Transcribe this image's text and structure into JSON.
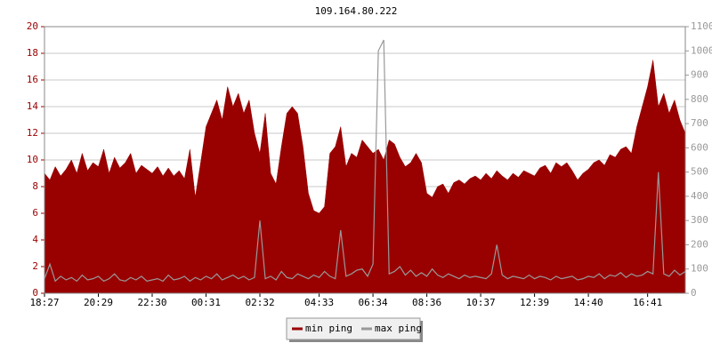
{
  "chart_data": {
    "type": "area_line",
    "title": "109.164.80.222",
    "xlim": [
      0,
      119
    ],
    "xticks": [
      {
        "value": 0,
        "label": "18:27"
      },
      {
        "value": 10,
        "label": "20:29"
      },
      {
        "value": 20,
        "label": "22:30"
      },
      {
        "value": 30,
        "label": "00:31"
      },
      {
        "value": 40,
        "label": "02:32"
      },
      {
        "value": 51,
        "label": "04:33"
      },
      {
        "value": 61,
        "label": "06:34"
      },
      {
        "value": 71,
        "label": "08:36"
      },
      {
        "value": 81,
        "label": "10:37"
      },
      {
        "value": 91,
        "label": "12:39"
      },
      {
        "value": 101,
        "label": "14:40"
      },
      {
        "value": 112,
        "label": "16:41"
      }
    ],
    "ylim": [
      0,
      20
    ],
    "yticks": [
      0,
      2,
      4,
      6,
      8,
      10,
      12,
      14,
      16,
      18,
      20
    ],
    "y2lim": [
      0,
      1100
    ],
    "y2ticks": [
      0,
      100,
      200,
      300,
      400,
      500,
      600,
      700,
      800,
      900,
      1000,
      1100
    ],
    "grid": true,
    "legend": "bottom",
    "series": [
      {
        "name": "min ping",
        "color": "#990000",
        "fill": true,
        "values": [
          9,
          8.5,
          9.5,
          8.8,
          9.3,
          10,
          9,
          10.5,
          9.2,
          9.8,
          9.5,
          10.8,
          9,
          10.2,
          9.4,
          9.8,
          10.5,
          9,
          9.6,
          9.3,
          9,
          9.5,
          8.8,
          9.4,
          8.8,
          9.2,
          8.6,
          10.8,
          7.2,
          9.8,
          12.5,
          13.5,
          14.5,
          13,
          15.5,
          14,
          15,
          13.5,
          14.5,
          12,
          10.5,
          13.5,
          9,
          8.2,
          11,
          13.5,
          14,
          13.5,
          11,
          7.5,
          6.2,
          6,
          6.5,
          10.5,
          11,
          12.5,
          9.5,
          10.5,
          10.2,
          11.5,
          11,
          10.5,
          10.8,
          10,
          11.5,
          11.2,
          10.2,
          9.5,
          9.8,
          10.5,
          9.8,
          7.5,
          7.2,
          8,
          8.2,
          7.5,
          8.3,
          8.5,
          8.2,
          8.6,
          8.8,
          8.5,
          9,
          8.6,
          9.2,
          8.8,
          8.5,
          9,
          8.7,
          9.2,
          9,
          8.8,
          9.4,
          9.6,
          9,
          9.8,
          9.5,
          9.8,
          9.2,
          8.5,
          9,
          9.3,
          9.8,
          10,
          9.6,
          10.4,
          10.2,
          10.8,
          11,
          10.5,
          12.5,
          14,
          15.5,
          17.5,
          14,
          15,
          13.5,
          14.5,
          13,
          12
        ]
      },
      {
        "name": "max ping",
        "color": "#999999",
        "axis": "y2",
        "values": [
          60,
          120,
          50,
          70,
          55,
          65,
          50,
          75,
          55,
          60,
          70,
          50,
          60,
          80,
          55,
          50,
          65,
          55,
          70,
          50,
          55,
          60,
          50,
          75,
          55,
          60,
          70,
          50,
          65,
          55,
          70,
          60,
          80,
          55,
          65,
          75,
          60,
          70,
          55,
          65,
          300,
          60,
          70,
          55,
          90,
          65,
          60,
          80,
          70,
          60,
          75,
          65,
          90,
          70,
          60,
          260,
          70,
          80,
          95,
          100,
          70,
          120,
          1000,
          1045,
          80,
          90,
          110,
          75,
          95,
          70,
          85,
          70,
          100,
          75,
          65,
          80,
          70,
          60,
          75,
          65,
          70,
          65,
          60,
          80,
          200,
          75,
          60,
          70,
          65,
          60,
          75,
          60,
          70,
          65,
          55,
          70,
          60,
          65,
          70,
          55,
          60,
          70,
          65,
          80,
          60,
          75,
          70,
          85,
          65,
          80,
          70,
          75,
          90,
          80,
          500,
          80,
          70,
          95,
          75,
          90
        ]
      }
    ]
  }
}
